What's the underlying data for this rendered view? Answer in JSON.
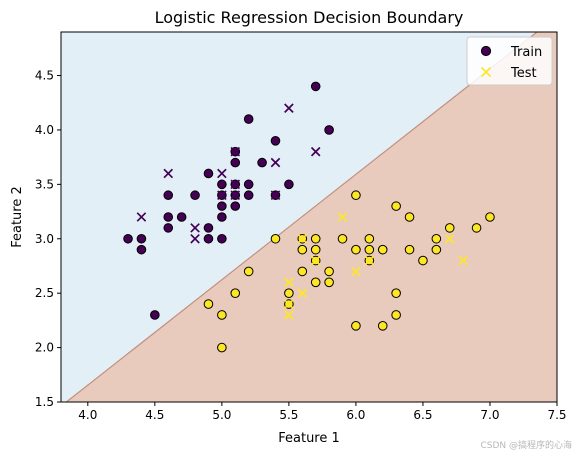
{
  "chart_data": {
    "type": "scatter",
    "title": "Logistic Regression Decision Boundary",
    "xlabel": "Feature 1",
    "ylabel": "Feature 2",
    "xlim": [
      3.8,
      7.5
    ],
    "ylim": [
      1.5,
      4.9
    ],
    "xticks": [
      "4.0",
      "4.5",
      "5.0",
      "5.5",
      "6.0",
      "6.5",
      "7.0",
      "7.5"
    ],
    "yticks": [
      "1.5",
      "2.0",
      "2.5",
      "3.0",
      "3.5",
      "4.0",
      "4.5"
    ],
    "xtick_values": [
      4.0,
      4.5,
      5.0,
      5.5,
      6.0,
      6.5,
      7.0,
      7.5
    ],
    "ytick_values": [
      1.5,
      2.0,
      2.5,
      3.0,
      3.5,
      4.0,
      4.5
    ],
    "decision_boundary": {
      "x": [
        3.84,
        7.35
      ],
      "y": [
        1.5,
        4.9
      ]
    },
    "region_colors": {
      "class0": "#e3eff7",
      "class1": "#e8cbbd",
      "boundary": "#c48f7c"
    },
    "class_colors": {
      "class0": "#440154",
      "class1": "#fde725"
    },
    "legend": {
      "loc": "upper right",
      "entries": [
        "Train",
        "Test"
      ]
    },
    "series": [
      {
        "name": "Train",
        "marker": "circle",
        "class0": [
          [
            4.3,
            3.0
          ],
          [
            4.4,
            2.9
          ],
          [
            4.4,
            3.0
          ],
          [
            4.5,
            2.3
          ],
          [
            4.6,
            3.1
          ],
          [
            4.6,
            3.2
          ],
          [
            4.6,
            3.4
          ],
          [
            4.7,
            3.2
          ],
          [
            4.8,
            3.4
          ],
          [
            4.9,
            3.0
          ],
          [
            4.9,
            3.1
          ],
          [
            4.9,
            3.6
          ],
          [
            5.0,
            3.0
          ],
          [
            5.0,
            3.2
          ],
          [
            5.0,
            3.3
          ],
          [
            5.0,
            3.4
          ],
          [
            5.0,
            3.5
          ],
          [
            5.1,
            3.3
          ],
          [
            5.1,
            3.4
          ],
          [
            5.1,
            3.5
          ],
          [
            5.1,
            3.7
          ],
          [
            5.1,
            3.8
          ],
          [
            5.2,
            3.4
          ],
          [
            5.2,
            3.5
          ],
          [
            5.2,
            4.1
          ],
          [
            5.3,
            3.7
          ],
          [
            5.4,
            3.4
          ],
          [
            5.4,
            3.9
          ],
          [
            5.5,
            3.5
          ],
          [
            5.7,
            4.4
          ],
          [
            5.8,
            4.0
          ]
        ],
        "class1": [
          [
            4.9,
            2.4
          ],
          [
            5.0,
            2.0
          ],
          [
            5.0,
            2.3
          ],
          [
            5.1,
            2.5
          ],
          [
            5.2,
            2.7
          ],
          [
            5.4,
            3.0
          ],
          [
            5.5,
            2.4
          ],
          [
            5.5,
            2.5
          ],
          [
            5.6,
            2.7
          ],
          [
            5.6,
            2.9
          ],
          [
            5.6,
            3.0
          ],
          [
            5.7,
            2.6
          ],
          [
            5.7,
            2.8
          ],
          [
            5.7,
            2.9
          ],
          [
            5.7,
            3.0
          ],
          [
            5.8,
            2.6
          ],
          [
            5.8,
            2.7
          ],
          [
            5.9,
            3.0
          ],
          [
            6.0,
            2.2
          ],
          [
            6.0,
            2.9
          ],
          [
            6.0,
            3.4
          ],
          [
            6.1,
            2.8
          ],
          [
            6.1,
            2.9
          ],
          [
            6.1,
            3.0
          ],
          [
            6.2,
            2.2
          ],
          [
            6.2,
            2.9
          ],
          [
            6.3,
            2.3
          ],
          [
            6.3,
            2.5
          ],
          [
            6.3,
            3.3
          ],
          [
            6.4,
            2.9
          ],
          [
            6.4,
            3.2
          ],
          [
            6.5,
            2.8
          ],
          [
            6.6,
            2.9
          ],
          [
            6.6,
            3.0
          ],
          [
            6.7,
            3.1
          ],
          [
            6.9,
            3.1
          ],
          [
            7.0,
            3.2
          ]
        ]
      },
      {
        "name": "Test",
        "marker": "x",
        "class0": [
          [
            4.4,
            3.2
          ],
          [
            4.6,
            3.6
          ],
          [
            4.8,
            3.0
          ],
          [
            4.8,
            3.1
          ],
          [
            5.0,
            3.4
          ],
          [
            5.0,
            3.6
          ],
          [
            5.1,
            3.4
          ],
          [
            5.1,
            3.5
          ],
          [
            5.1,
            3.8
          ],
          [
            5.4,
            3.4
          ],
          [
            5.4,
            3.7
          ],
          [
            5.5,
            4.2
          ],
          [
            5.7,
            3.8
          ]
        ],
        "class1": [
          [
            5.5,
            2.3
          ],
          [
            5.5,
            2.4
          ],
          [
            5.5,
            2.6
          ],
          [
            5.6,
            2.5
          ],
          [
            5.6,
            3.0
          ],
          [
            5.7,
            2.8
          ],
          [
            5.9,
            3.2
          ],
          [
            6.0,
            2.7
          ],
          [
            6.1,
            2.8
          ],
          [
            6.7,
            3.0
          ],
          [
            6.8,
            2.8
          ]
        ]
      }
    ]
  },
  "watermark": "CSDN @搞程序的心海"
}
